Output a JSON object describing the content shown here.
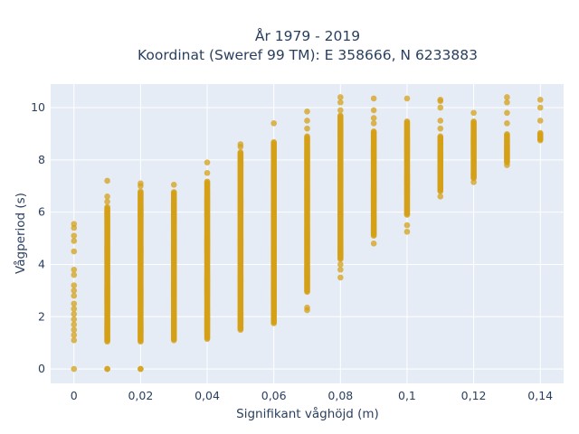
{
  "chart_data": {
    "type": "scatter",
    "title_line1": "År 1979 - 2019",
    "title_line2": "Koordinat (Sweref 99 TM): E 358666, N 6233883",
    "xlabel": "Signifikant våghöjd (m)",
    "ylabel": "Vågperiod (s)",
    "xlim": [
      -0.007,
      0.147
    ],
    "ylim": [
      -0.55,
      10.9
    ],
    "x_ticks": [
      0,
      0.02,
      0.04,
      0.06,
      0.08,
      0.1,
      0.12,
      0.14
    ],
    "x_tick_labels": [
      "0",
      "0,02",
      "0,04",
      "0,06",
      "0,08",
      "0,1",
      "0,12",
      "0,14"
    ],
    "y_ticks": [
      0,
      2,
      4,
      6,
      8,
      10
    ],
    "y_tick_labels": [
      "0",
      "2",
      "4",
      "6",
      "8",
      "10"
    ],
    "grid": true,
    "marker_color": "#d4a017",
    "background": "#e5ecf6",
    "columns": [
      {
        "x": 0.0,
        "dense": [],
        "points": [
          0,
          1.1,
          1.3,
          1.5,
          1.7,
          1.9,
          2.1,
          2.3,
          2.5,
          2.8,
          3.0,
          3.2,
          3.6,
          3.8,
          4.5,
          4.9,
          5.1,
          5.4,
          5.55
        ]
      },
      {
        "x": 0.01,
        "dense": [
          1.05,
          6.2
        ],
        "points": [
          0,
          0,
          6.4,
          6.6,
          7.2
        ]
      },
      {
        "x": 0.02,
        "dense": [
          1.05,
          6.8
        ],
        "points": [
          0,
          0,
          7.0,
          7.1
        ]
      },
      {
        "x": 0.03,
        "dense": [
          1.1,
          6.8
        ],
        "points": [
          7.05
        ]
      },
      {
        "x": 0.04,
        "dense": [
          1.15,
          7.2
        ],
        "points": [
          7.5,
          7.9
        ]
      },
      {
        "x": 0.05,
        "dense": [
          1.5,
          8.3
        ],
        "points": [
          8.5,
          8.6
        ]
      },
      {
        "x": 0.06,
        "dense": [
          1.75,
          8.7
        ],
        "points": [
          9.4
        ]
      },
      {
        "x": 0.07,
        "dense": [
          2.95,
          8.9
        ],
        "points": [
          2.25,
          2.35,
          9.2,
          9.5,
          9.85
        ]
      },
      {
        "x": 0.08,
        "dense": [
          4.2,
          9.7
        ],
        "points": [
          3.5,
          3.8,
          4.0,
          9.9,
          10.2,
          10.4
        ]
      },
      {
        "x": 0.09,
        "dense": [
          5.1,
          9.1
        ],
        "points": [
          4.8,
          9.4,
          9.6,
          9.9,
          10.35
        ]
      },
      {
        "x": 0.1,
        "dense": [
          5.9,
          9.5
        ],
        "points": [
          5.25,
          5.5,
          10.35
        ]
      },
      {
        "x": 0.11,
        "dense": [
          6.8,
          8.9
        ],
        "points": [
          6.6,
          9.2,
          9.5,
          10.0,
          10.25,
          10.3
        ]
      },
      {
        "x": 0.12,
        "dense": [
          7.3,
          9.5
        ],
        "points": [
          7.15,
          9.8
        ]
      },
      {
        "x": 0.13,
        "dense": [
          7.9,
          9.0
        ],
        "points": [
          7.8,
          9.4,
          9.8,
          10.2,
          10.4
        ]
      },
      {
        "x": 0.14,
        "dense": [
          8.75,
          9.05
        ],
        "points": [
          9.5,
          10.0,
          10.3
        ]
      }
    ]
  }
}
